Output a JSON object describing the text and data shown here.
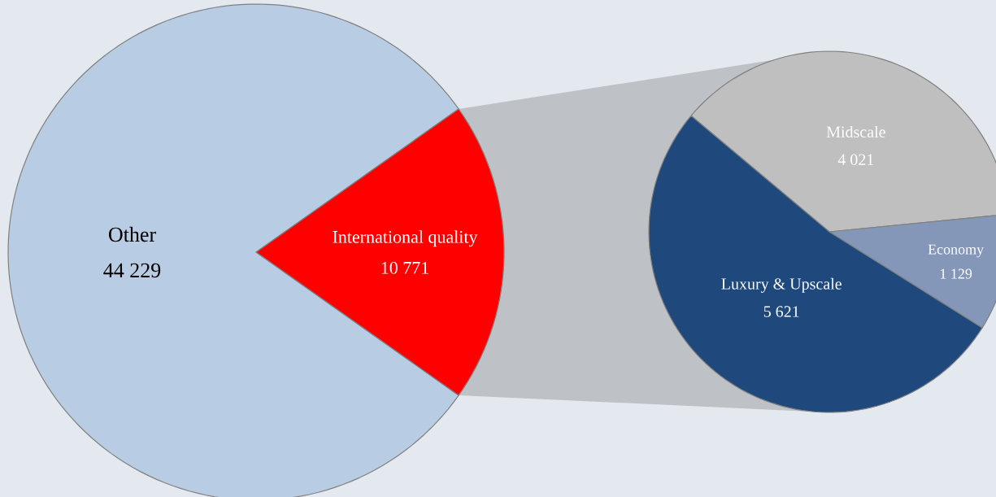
{
  "chart_data": [
    {
      "type": "pie",
      "categories": [
        "Other",
        "International quality"
      ],
      "values": [
        44229,
        10771
      ],
      "colors": [
        "#b8cce4",
        "#ff0000"
      ],
      "value_labels": [
        "44 229",
        "10 771"
      ]
    },
    {
      "type": "pie",
      "categories": [
        "Midscale",
        "Economy",
        "Luxury & Upscale"
      ],
      "values": [
        4021,
        1129,
        5621
      ],
      "colors": [
        "#bfbfbf",
        "#8497b9",
        "#1f497d"
      ],
      "value_labels": [
        "4 021",
        "1 129",
        "5 621"
      ]
    }
  ]
}
